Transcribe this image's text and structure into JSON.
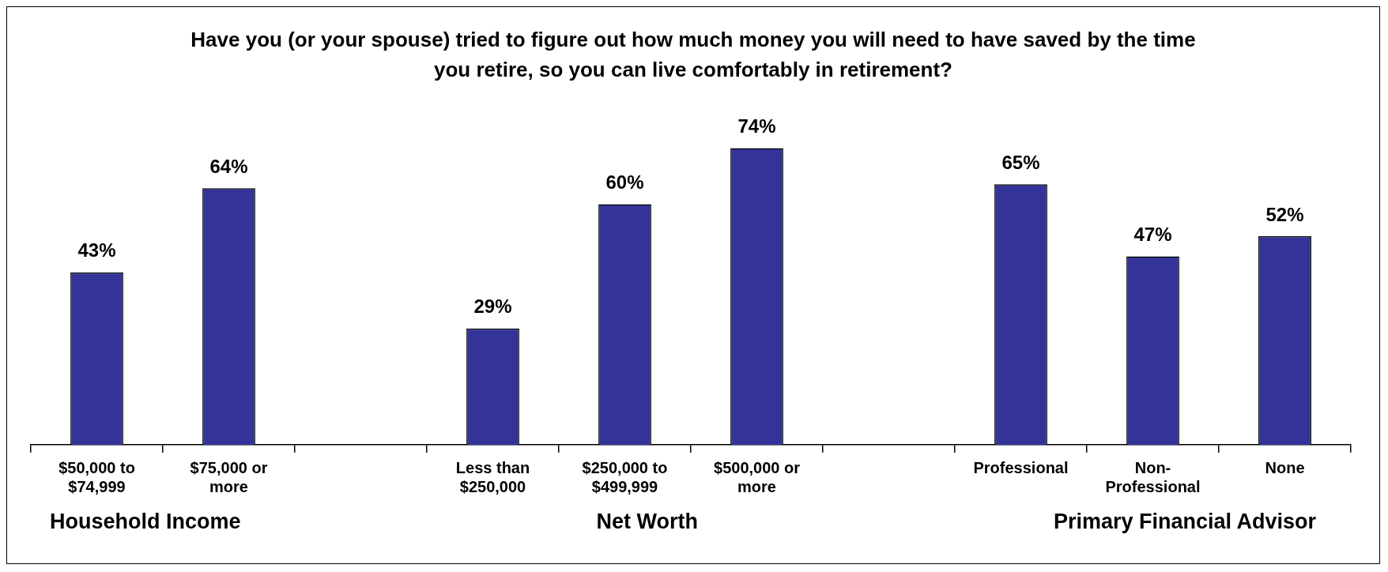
{
  "chart_data": {
    "type": "bar",
    "title": "Have you (or your spouse) tried to figure out how much money you will need to have saved by the time you retire, so you can live comfortably in retirement?",
    "categories": [
      "$50,000 to $74,999",
      "$75,000 or more",
      null,
      "Less than $250,000",
      "$250,000 to $499,999",
      "$500,000 or more",
      null,
      "Professional",
      "Non-Professional",
      "None"
    ],
    "values": [
      43,
      64,
      null,
      29,
      60,
      74,
      null,
      65,
      47,
      52
    ],
    "value_labels": [
      "43%",
      "64%",
      null,
      "29%",
      "60%",
      "74%",
      null,
      "65%",
      "47%",
      "52%"
    ],
    "color": "#333399",
    "annotations": [
      "Household Income",
      "Net Worth",
      "Primary Financial Advisor"
    ],
    "grid": false,
    "legend": false
  }
}
